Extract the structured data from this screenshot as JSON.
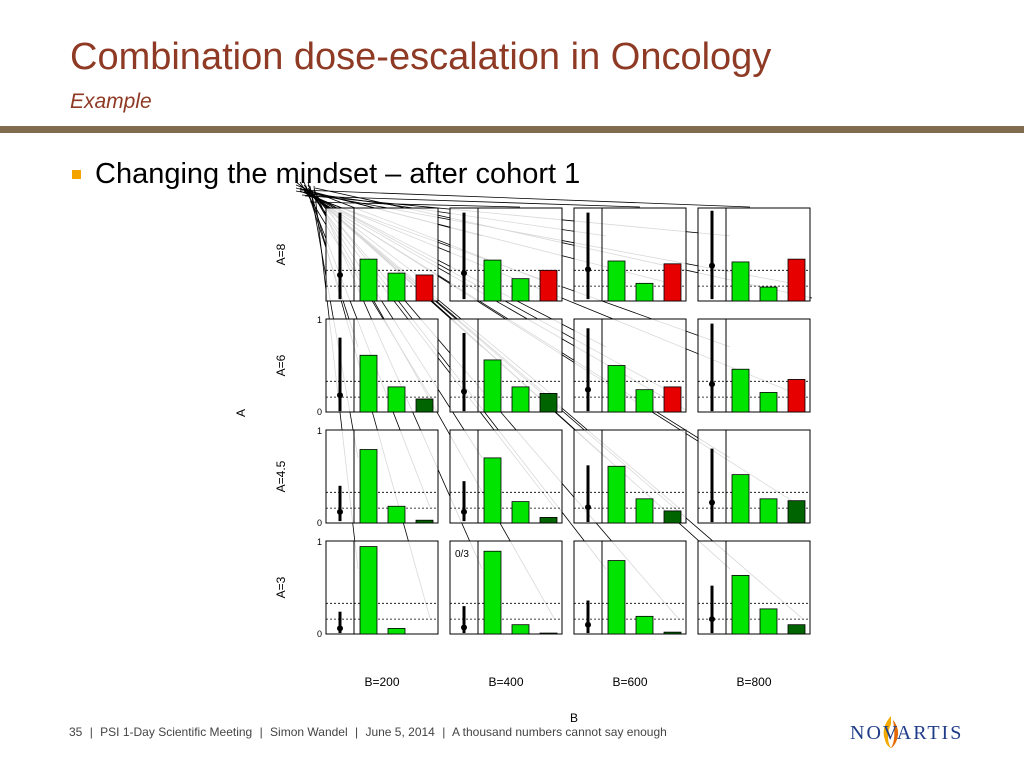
{
  "slide": {
    "title": "Combination dose-escalation in Oncology",
    "subtitle": "Example",
    "bullet": "Changing the mindset – after cohort 1",
    "bullet_color": "#f4a400",
    "title_color": "#8e3a24",
    "rule_color": "#826c4f"
  },
  "footer": {
    "page": "35",
    "separator": "|",
    "meeting": "PSI 1-Day Scientific Meeting",
    "author": "Simon Wandel",
    "date": "June 5, 2014",
    "tagline": "A thousand numbers cannot say enough"
  },
  "logo": {
    "text": "NOVARTIS",
    "color": "#1f3c88",
    "icon": "novartis-flame-icon"
  },
  "chart_data": {
    "type": "bar",
    "xlabel": "B",
    "ylabel": "A",
    "columns": [
      "B=200",
      "B=400",
      "B=600",
      "B=800"
    ],
    "rows": [
      "A=8",
      "A=6",
      "A=4.5",
      "A=3"
    ],
    "ylim": [
      0,
      1
    ],
    "ytick_labels": [
      "0",
      "1"
    ],
    "reference_lines": [
      0.16,
      0.33
    ],
    "colors": {
      "light_green": "#00e400",
      "dark_green": "#006400",
      "red": "#e60000"
    },
    "cohort_label": {
      "row": "A=3",
      "col": "B=400",
      "text": "0/3"
    },
    "panels": {
      "A=8": [
        {
          "col": "B=200",
          "bars": [
            0.45,
            0.3,
            0.28
          ],
          "bar_colors": [
            "light_green",
            "light_green",
            "red"
          ],
          "median": 0.28,
          "interval": [
            0.02,
            0.95
          ]
        },
        {
          "col": "B=400",
          "bars": [
            0.44,
            0.24,
            0.33
          ],
          "bar_colors": [
            "light_green",
            "light_green",
            "red"
          ],
          "median": 0.3,
          "interval": [
            0.02,
            0.95
          ]
        },
        {
          "col": "B=600",
          "bars": [
            0.43,
            0.19,
            0.4
          ],
          "bar_colors": [
            "light_green",
            "light_green",
            "red"
          ],
          "median": 0.34,
          "interval": [
            0.02,
            0.95
          ]
        },
        {
          "col": "B=800",
          "bars": [
            0.42,
            0.15,
            0.45
          ],
          "bar_colors": [
            "light_green",
            "light_green",
            "red"
          ],
          "median": 0.38,
          "interval": [
            0.02,
            0.97
          ]
        }
      ],
      "A=6": [
        {
          "col": "B=200",
          "bars": [
            0.61,
            0.27,
            0.14
          ],
          "bar_colors": [
            "light_green",
            "light_green",
            "dark_green"
          ],
          "median": 0.18,
          "interval": [
            0.01,
            0.8
          ]
        },
        {
          "col": "B=400",
          "bars": [
            0.56,
            0.27,
            0.2
          ],
          "bar_colors": [
            "light_green",
            "light_green",
            "dark_green"
          ],
          "median": 0.22,
          "interval": [
            0.01,
            0.85
          ]
        },
        {
          "col": "B=600",
          "bars": [
            0.5,
            0.24,
            0.27
          ],
          "bar_colors": [
            "light_green",
            "light_green",
            "red"
          ],
          "median": 0.24,
          "interval": [
            0.01,
            0.9
          ]
        },
        {
          "col": "B=800",
          "bars": [
            0.46,
            0.21,
            0.35
          ],
          "bar_colors": [
            "light_green",
            "light_green",
            "red"
          ],
          "median": 0.3,
          "interval": [
            0.01,
            0.95
          ]
        }
      ],
      "A=4.5": [
        {
          "col": "B=200",
          "bars": [
            0.79,
            0.18,
            0.03
          ],
          "bar_colors": [
            "light_green",
            "light_green",
            "dark_green"
          ],
          "median": 0.12,
          "interval": [
            0.02,
            0.4
          ]
        },
        {
          "col": "B=400",
          "bars": [
            0.7,
            0.23,
            0.06
          ],
          "bar_colors": [
            "light_green",
            "light_green",
            "dark_green"
          ],
          "median": 0.12,
          "interval": [
            0.02,
            0.45
          ]
        },
        {
          "col": "B=600",
          "bars": [
            0.61,
            0.26,
            0.13
          ],
          "bar_colors": [
            "light_green",
            "light_green",
            "dark_green"
          ],
          "median": 0.17,
          "interval": [
            0.01,
            0.62
          ]
        },
        {
          "col": "B=800",
          "bars": [
            0.52,
            0.26,
            0.24
          ],
          "bar_colors": [
            "light_green",
            "light_green",
            "dark_green"
          ],
          "median": 0.22,
          "interval": [
            0.01,
            0.8
          ]
        }
      ],
      "A=3": [
        {
          "col": "B=200",
          "bars": [
            0.94,
            0.06,
            0.0
          ],
          "bar_colors": [
            "light_green",
            "light_green",
            "dark_green"
          ],
          "median": 0.06,
          "interval": [
            0.01,
            0.24
          ]
        },
        {
          "col": "B=400",
          "bars": [
            0.89,
            0.1,
            0.01
          ],
          "bar_colors": [
            "light_green",
            "light_green",
            "dark_green"
          ],
          "median": 0.07,
          "interval": [
            0.01,
            0.3
          ]
        },
        {
          "col": "B=600",
          "bars": [
            0.79,
            0.19,
            0.02
          ],
          "bar_colors": [
            "light_green",
            "light_green",
            "dark_green"
          ],
          "median": 0.1,
          "interval": [
            0.01,
            0.36
          ]
        },
        {
          "col": "B=800",
          "bars": [
            0.63,
            0.27,
            0.1
          ],
          "bar_colors": [
            "light_green",
            "light_green",
            "dark_green"
          ],
          "median": 0.16,
          "interval": [
            0.01,
            0.52
          ]
        }
      ]
    }
  }
}
